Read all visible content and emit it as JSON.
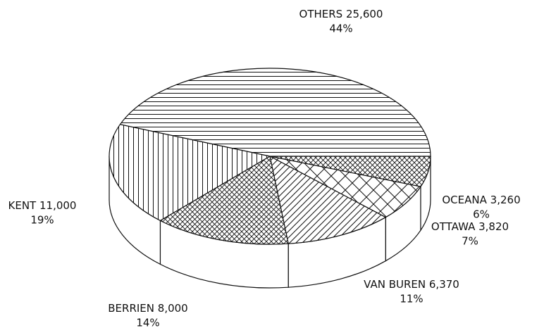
{
  "chart_data": {
    "type": "pie3d",
    "categories": [
      "OCEANA",
      "OTTAWA",
      "VAN BUREN",
      "BERRIEN",
      "KENT",
      "OTHERS"
    ],
    "values": [
      3260,
      3820,
      6370,
      8000,
      11000,
      25600
    ],
    "value_labels": [
      "3,260",
      "3,820",
      "6,370",
      "8,000",
      "11,000",
      "25,600"
    ],
    "percents": [
      6,
      7,
      11,
      14,
      19,
      44
    ],
    "percent_labels": [
      "6%",
      "7%",
      "11%",
      "14%",
      "19%",
      "44%"
    ]
  }
}
